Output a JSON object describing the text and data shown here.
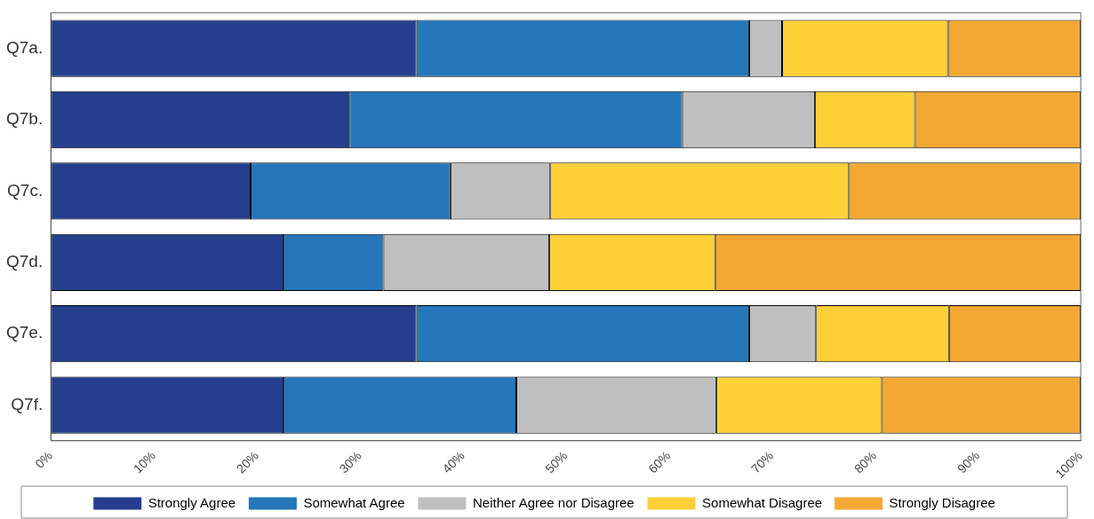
{
  "chart_data": {
    "type": "bar",
    "orientation": "horizontal",
    "stacked": true,
    "grid": false,
    "legend": "bottom",
    "categories": [
      "Q7a.",
      "Q7b.",
      "Q7c.",
      "Q7d.",
      "Q7e.",
      "Q7f."
    ],
    "xlim": [
      0,
      100
    ],
    "xticks": [
      {
        "value": 0,
        "label": "0%"
      },
      {
        "value": 10,
        "label": "10%"
      },
      {
        "value": 20,
        "label": "20%"
      },
      {
        "value": 30,
        "label": "30%"
      },
      {
        "value": 40,
        "label": "40%"
      },
      {
        "value": 50,
        "label": "50%"
      },
      {
        "value": 60,
        "label": "60%"
      },
      {
        "value": 70,
        "label": "70%"
      },
      {
        "value": 80,
        "label": "80%"
      },
      {
        "value": 90,
        "label": "90%"
      },
      {
        "value": 100,
        "label": "100%"
      }
    ],
    "series": [
      {
        "name": "Strongly Agree",
        "color": "#253f8e",
        "values": [
          35.5,
          29.0,
          19.4,
          22.6,
          35.5,
          22.6
        ]
      },
      {
        "name": "Somewhat Agree",
        "color": "#2577b9",
        "values": [
          32.3,
          32.3,
          19.4,
          9.7,
          32.3,
          22.6
        ]
      },
      {
        "name": "Neither Agree nor Disagree",
        "color": "#bfbfbf",
        "values": [
          3.2,
          12.9,
          9.7,
          16.1,
          6.5,
          19.4
        ]
      },
      {
        "name": "Somewhat Disagree",
        "color": "#fdd037",
        "values": [
          16.1,
          9.7,
          29.0,
          16.1,
          12.9,
          16.1
        ]
      },
      {
        "name": "Strongly Disagree",
        "color": "#f2a833",
        "values": [
          12.9,
          16.1,
          22.5,
          35.5,
          12.8,
          19.3
        ]
      }
    ]
  }
}
